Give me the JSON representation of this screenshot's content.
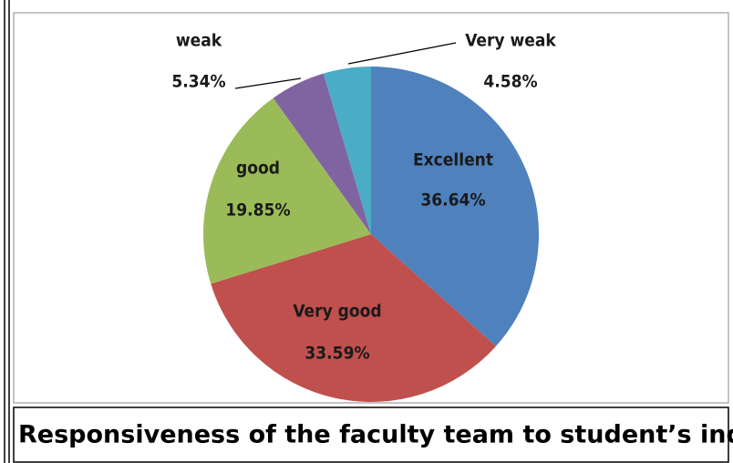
{
  "chart_data": {
    "type": "pie",
    "title": "Responsiveness of the faculty team to student’s inquiries",
    "categories": [
      "Excellent",
      "Very good",
      "good",
      "weak",
      "Very weak"
    ],
    "values": [
      36.64,
      33.59,
      19.85,
      5.34,
      4.58
    ],
    "value_labels": [
      "36.64%",
      "33.59%",
      "19.85%",
      "5.34%",
      "4.58%"
    ],
    "colors": [
      "#4f81bd",
      "#c0504d",
      "#9bbb59",
      "#8064a2",
      "#4bacc6"
    ]
  }
}
